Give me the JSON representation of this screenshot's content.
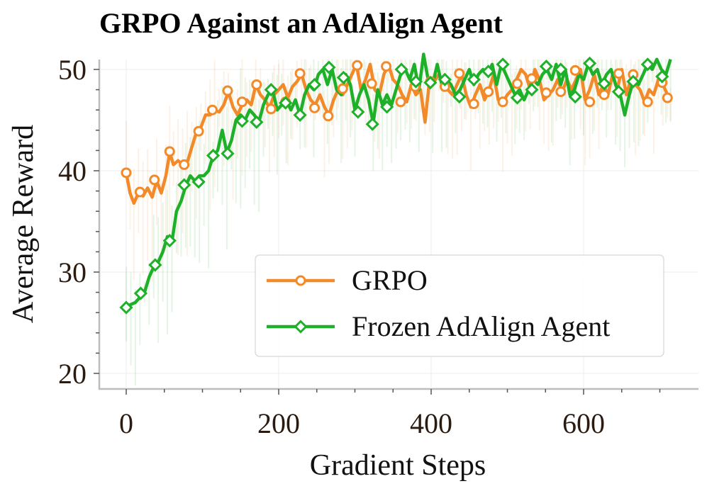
{
  "chart_data": {
    "type": "line",
    "title": "GRPO Against an AdAlign Agent",
    "xlabel": "Gradient Steps",
    "ylabel": "Average Reward",
    "xlim": [
      -30,
      750
    ],
    "ylim": [
      18.5,
      51
    ],
    "xticks": [
      0,
      200,
      400,
      600
    ],
    "yticks": [
      20,
      30,
      40,
      50
    ],
    "grid": true,
    "legend_position": "center-right",
    "series": [
      {
        "name": "GRPO",
        "color": "#f28a2a",
        "marker": "circle",
        "points": [
          [
            0,
            39.8
          ],
          [
            5,
            37.8
          ],
          [
            10,
            36.8
          ],
          [
            16,
            37.8
          ],
          [
            22,
            37.5
          ],
          [
            28,
            38.3
          ],
          [
            34,
            37.4
          ],
          [
            40,
            39.0
          ],
          [
            46,
            37.8
          ],
          [
            52,
            39.5
          ],
          [
            57,
            41.8
          ],
          [
            62,
            40.6
          ],
          [
            68,
            41.0
          ],
          [
            74,
            40.6
          ],
          [
            80,
            40.8
          ],
          [
            86,
            42.3
          ],
          [
            92,
            43.8
          ],
          [
            98,
            44.3
          ],
          [
            104,
            45.5
          ],
          [
            110,
            45.5
          ],
          [
            116,
            46.0
          ],
          [
            122,
            45.8
          ],
          [
            128,
            46.5
          ],
          [
            134,
            47.8
          ],
          [
            140,
            46.3
          ],
          [
            146,
            45.5
          ],
          [
            152,
            46.5
          ],
          [
            158,
            47.0
          ],
          [
            164,
            46.5
          ],
          [
            170,
            48.5
          ],
          [
            176,
            47.5
          ],
          [
            182,
            47.0
          ],
          [
            188,
            46.2
          ],
          [
            194,
            47.5
          ],
          [
            200,
            48.0
          ],
          [
            206,
            48.5
          ],
          [
            212,
            47.2
          ],
          [
            218,
            48.3
          ],
          [
            224,
            48.8
          ],
          [
            230,
            49.5
          ],
          [
            236,
            48.0
          ],
          [
            242,
            47.0
          ],
          [
            248,
            46.5
          ],
          [
            254,
            47.5
          ],
          [
            260,
            46.3
          ],
          [
            266,
            45.5
          ],
          [
            272,
            47.0
          ],
          [
            278,
            48.0
          ],
          [
            284,
            47.5
          ],
          [
            290,
            48.5
          ],
          [
            296,
            49.5
          ],
          [
            302,
            50.5
          ],
          [
            308,
            48.0
          ],
          [
            314,
            49.0
          ],
          [
            320,
            50.5
          ],
          [
            326,
            48.0
          ],
          [
            332,
            47.5
          ],
          [
            338,
            49.5
          ],
          [
            344,
            50.5
          ],
          [
            350,
            49.0
          ],
          [
            356,
            48.5
          ],
          [
            362,
            47.5
          ],
          [
            368,
            46.8
          ],
          [
            374,
            48.5
          ],
          [
            380,
            47.5
          ],
          [
            386,
            48.0
          ],
          [
            392,
            44.8
          ],
          [
            398,
            49.0
          ],
          [
            404,
            48.8
          ],
          [
            410,
            49.5
          ],
          [
            416,
            48.5
          ],
          [
            422,
            48.0
          ],
          [
            428,
            47.5
          ],
          [
            434,
            48.5
          ],
          [
            440,
            49.5
          ],
          [
            446,
            47.5
          ],
          [
            452,
            46.3
          ],
          [
            458,
            47.5
          ],
          [
            464,
            48.5
          ],
          [
            470,
            47.0
          ],
          [
            476,
            48.0
          ],
          [
            482,
            49.5
          ],
          [
            488,
            47.0
          ],
          [
            494,
            46.8
          ],
          [
            500,
            47.5
          ],
          [
            506,
            48.0
          ],
          [
            512,
            49.0
          ],
          [
            518,
            50.0
          ],
          [
            524,
            49.5
          ],
          [
            530,
            48.0
          ],
          [
            536,
            50.0
          ],
          [
            542,
            49.0
          ],
          [
            548,
            47.0
          ],
          [
            554,
            47.5
          ],
          [
            560,
            48.0
          ],
          [
            566,
            49.0
          ],
          [
            572,
            47.8
          ],
          [
            578,
            49.0
          ],
          [
            584,
            48.0
          ],
          [
            590,
            49.0
          ],
          [
            596,
            50.0
          ],
          [
            602,
            47.0
          ],
          [
            608,
            48.0
          ],
          [
            614,
            49.5
          ],
          [
            620,
            47.5
          ],
          [
            626,
            48.5
          ],
          [
            632,
            47.5
          ],
          [
            638,
            49.5
          ],
          [
            644,
            48.0
          ],
          [
            650,
            50.0
          ],
          [
            656,
            47.5
          ],
          [
            662,
            49.0
          ],
          [
            668,
            48.5
          ],
          [
            674,
            48.0
          ],
          [
            680,
            46.8
          ],
          [
            686,
            48.0
          ],
          [
            692,
            47.5
          ],
          [
            698,
            49.0
          ],
          [
            704,
            48.5
          ],
          [
            710,
            47.5
          ],
          [
            714,
            47.0
          ]
        ],
        "marker_points": [
          [
            0,
            39.8
          ],
          [
            18,
            37.9
          ],
          [
            37,
            39.1
          ],
          [
            57,
            41.9
          ],
          [
            76,
            40.6
          ],
          [
            95,
            43.9
          ],
          [
            113,
            46.0
          ],
          [
            133,
            47.9
          ],
          [
            152,
            46.8
          ],
          [
            171,
            48.5
          ],
          [
            190,
            46.1
          ],
          [
            209,
            46.8
          ],
          [
            228,
            49.6
          ],
          [
            247,
            46.2
          ],
          [
            265,
            45.4
          ],
          [
            284,
            48.1
          ],
          [
            303,
            50.4
          ],
          [
            322,
            48.6
          ],
          [
            341,
            50.3
          ],
          [
            360,
            46.8
          ],
          [
            379,
            48.3
          ],
          [
            399,
            48.8
          ],
          [
            418,
            48.3
          ],
          [
            437,
            49.6
          ],
          [
            456,
            46.6
          ],
          [
            475,
            47.8
          ],
          [
            494,
            46.8
          ],
          [
            513,
            48.6
          ],
          [
            532,
            49.1
          ],
          [
            551,
            47.7
          ],
          [
            570,
            47.8
          ],
          [
            589,
            49.9
          ],
          [
            608,
            46.8
          ],
          [
            627,
            47.5
          ],
          [
            646,
            49.6
          ],
          [
            665,
            49.5
          ],
          [
            684,
            46.8
          ],
          [
            703,
            48.7
          ],
          [
            710,
            47.2
          ]
        ]
      },
      {
        "name": "Frozen AdAlign Agent",
        "color": "#1fb02a",
        "marker": "diamond",
        "points": [
          [
            0,
            26.6
          ],
          [
            6,
            26.8
          ],
          [
            12,
            27.0
          ],
          [
            18,
            27.5
          ],
          [
            24,
            28.0
          ],
          [
            30,
            29.5
          ],
          [
            36,
            30.5
          ],
          [
            42,
            31.0
          ],
          [
            48,
            32.0
          ],
          [
            54,
            33.5
          ],
          [
            60,
            33.0
          ],
          [
            66,
            36.0
          ],
          [
            72,
            37.0
          ],
          [
            78,
            38.5
          ],
          [
            84,
            39.5
          ],
          [
            90,
            39.0
          ],
          [
            96,
            39.5
          ],
          [
            102,
            39.5
          ],
          [
            108,
            40.0
          ],
          [
            114,
            41.5
          ],
          [
            120,
            42.0
          ],
          [
            126,
            44.0
          ],
          [
            132,
            41.8
          ],
          [
            138,
            43.0
          ],
          [
            144,
            45.0
          ],
          [
            150,
            45.5
          ],
          [
            156,
            45.0
          ],
          [
            162,
            46.0
          ],
          [
            168,
            45.5
          ],
          [
            174,
            44.8
          ],
          [
            180,
            46.5
          ],
          [
            186,
            47.5
          ],
          [
            192,
            48.0
          ],
          [
            198,
            46.0
          ],
          [
            204,
            46.5
          ],
          [
            210,
            47.0
          ],
          [
            216,
            46.0
          ],
          [
            222,
            47.0
          ],
          [
            228,
            45.5
          ],
          [
            234,
            47.5
          ],
          [
            240,
            48.5
          ],
          [
            246,
            48.0
          ],
          [
            252,
            49.5
          ],
          [
            258,
            50.0
          ],
          [
            264,
            48.5
          ],
          [
            270,
            50.0
          ],
          [
            276,
            48.0
          ],
          [
            282,
            47.5
          ],
          [
            288,
            49.5
          ],
          [
            294,
            48.5
          ],
          [
            300,
            46.0
          ],
          [
            306,
            47.5
          ],
          [
            312,
            48.5
          ],
          [
            318,
            47.0
          ],
          [
            324,
            44.7
          ],
          [
            330,
            48.0
          ],
          [
            336,
            46.5
          ],
          [
            342,
            47.5
          ],
          [
            348,
            46.5
          ],
          [
            354,
            48.0
          ],
          [
            360,
            49.5
          ],
          [
            366,
            50.0
          ],
          [
            372,
            49.0
          ],
          [
            378,
            50.5
          ],
          [
            384,
            48.0
          ],
          [
            390,
            51.5
          ],
          [
            396,
            49.0
          ],
          [
            402,
            48.5
          ],
          [
            408,
            50.5
          ],
          [
            414,
            48.5
          ],
          [
            420,
            49.0
          ],
          [
            426,
            48.5
          ],
          [
            432,
            47.5
          ],
          [
            438,
            48.0
          ],
          [
            444,
            49.0
          ],
          [
            450,
            50.0
          ],
          [
            456,
            48.5
          ],
          [
            462,
            49.5
          ],
          [
            468,
            50.0
          ],
          [
            474,
            49.5
          ],
          [
            480,
            50.5
          ],
          [
            486,
            48.5
          ],
          [
            492,
            50.5
          ],
          [
            498,
            49.5
          ],
          [
            504,
            48.5
          ],
          [
            510,
            47.5
          ],
          [
            516,
            48.0
          ],
          [
            522,
            47.0
          ],
          [
            528,
            48.0
          ],
          [
            534,
            49.0
          ],
          [
            540,
            48.5
          ],
          [
            546,
            49.5
          ],
          [
            552,
            50.0
          ],
          [
            558,
            49.0
          ],
          [
            564,
            50.5
          ],
          [
            570,
            48.5
          ],
          [
            576,
            50.0
          ],
          [
            582,
            47.5
          ],
          [
            588,
            48.0
          ],
          [
            594,
            49.5
          ],
          [
            600,
            49.0
          ],
          [
            606,
            50.5
          ],
          [
            612,
            49.5
          ],
          [
            618,
            50.0
          ],
          [
            624,
            48.5
          ],
          [
            630,
            49.5
          ],
          [
            636,
            50.0
          ],
          [
            642,
            48.5
          ],
          [
            648,
            47.5
          ],
          [
            654,
            45.5
          ],
          [
            660,
            47.5
          ],
          [
            666,
            49.0
          ],
          [
            672,
            48.5
          ],
          [
            678,
            49.5
          ],
          [
            684,
            50.5
          ],
          [
            690,
            50.0
          ],
          [
            696,
            51.0
          ],
          [
            702,
            50.0
          ],
          [
            708,
            49.5
          ],
          [
            714,
            51.0
          ]
        ],
        "marker_points": [
          [
            0,
            26.5
          ],
          [
            19,
            27.9
          ],
          [
            38,
            30.7
          ],
          [
            57,
            33.1
          ],
          [
            76,
            38.6
          ],
          [
            95,
            38.9
          ],
          [
            114,
            41.5
          ],
          [
            133,
            41.7
          ],
          [
            152,
            44.9
          ],
          [
            171,
            44.8
          ],
          [
            190,
            48.0
          ],
          [
            209,
            46.7
          ],
          [
            228,
            45.5
          ],
          [
            247,
            48.5
          ],
          [
            266,
            50.2
          ],
          [
            285,
            49.2
          ],
          [
            304,
            45.8
          ],
          [
            323,
            44.6
          ],
          [
            342,
            46.3
          ],
          [
            361,
            50.0
          ],
          [
            380,
            48.8
          ],
          [
            399,
            48.7
          ],
          [
            418,
            49.0
          ],
          [
            437,
            47.3
          ],
          [
            456,
            49.0
          ],
          [
            475,
            49.8
          ],
          [
            494,
            50.5
          ],
          [
            513,
            47.2
          ],
          [
            532,
            48.0
          ],
          [
            551,
            50.3
          ],
          [
            570,
            50.0
          ],
          [
            589,
            47.3
          ],
          [
            608,
            50.6
          ],
          [
            627,
            48.6
          ],
          [
            646,
            47.8
          ],
          [
            665,
            48.8
          ],
          [
            684,
            50.5
          ],
          [
            703,
            49.3
          ]
        ]
      }
    ]
  }
}
